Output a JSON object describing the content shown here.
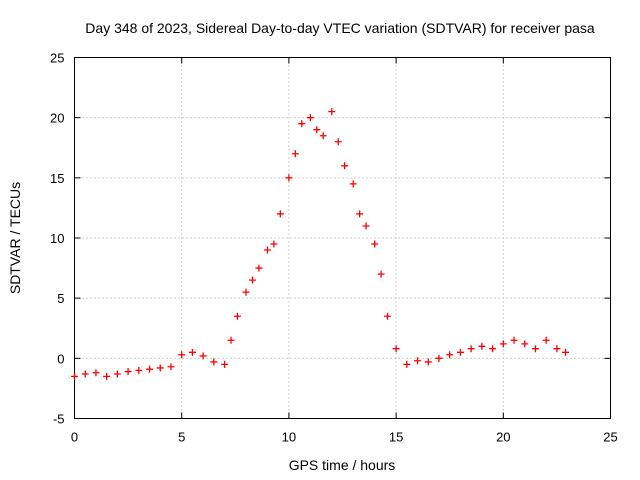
{
  "chart_data": {
    "type": "scatter",
    "title": "Day 348 of 2023, Sidereal Day-to-day VTEC variation (SDTVAR) for receiver pasa",
    "xlabel": "GPS time / hours",
    "ylabel": "SDTVAR / TECUs",
    "xlim": [
      0,
      25
    ],
    "ylim": [
      -5,
      25
    ],
    "xticks": [
      0,
      5,
      10,
      15,
      20,
      25
    ],
    "yticks": [
      -5,
      0,
      5,
      10,
      15,
      20,
      25
    ],
    "grid": true,
    "marker": "plus",
    "series": [
      {
        "name": "SDTVAR",
        "color": "#ff0000",
        "x": [
          0.0,
          0.5,
          1.0,
          1.5,
          2.0,
          2.5,
          3.0,
          3.5,
          4.0,
          4.5,
          5.0,
          5.5,
          6.0,
          6.5,
          7.0,
          7.3,
          7.6,
          8.0,
          8.3,
          8.6,
          9.0,
          9.3,
          9.6,
          10.0,
          10.3,
          10.6,
          11.0,
          11.3,
          11.6,
          12.0,
          12.3,
          12.6,
          13.0,
          13.3,
          13.6,
          14.0,
          14.3,
          14.6,
          15.0,
          15.5,
          16.0,
          16.5,
          17.0,
          17.5,
          18.0,
          18.5,
          19.0,
          19.5,
          20.0,
          20.5,
          21.0,
          21.5,
          22.0,
          22.5,
          22.9
        ],
        "y": [
          -1.5,
          -1.3,
          -1.2,
          -1.5,
          -1.3,
          -1.1,
          -1.0,
          -0.9,
          -0.8,
          -0.7,
          0.3,
          0.5,
          0.2,
          -0.3,
          -0.5,
          1.5,
          3.5,
          5.5,
          6.5,
          7.5,
          9.0,
          9.5,
          12.0,
          15.0,
          17.0,
          19.5,
          20.0,
          19.0,
          18.5,
          20.5,
          18.0,
          16.0,
          14.5,
          12.0,
          11.0,
          9.5,
          7.0,
          3.5,
          0.8,
          -0.5,
          -0.2,
          -0.3,
          0.0,
          0.3,
          0.5,
          0.8,
          1.0,
          0.8,
          1.2,
          1.5,
          1.2,
          0.8,
          1.5,
          0.8,
          0.5
        ]
      }
    ]
  }
}
